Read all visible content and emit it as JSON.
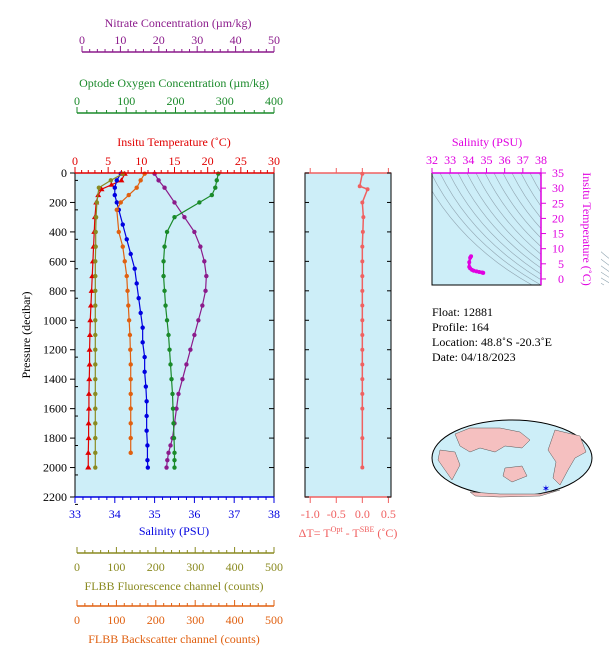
{
  "colors": {
    "nitrate": "#8b1a8b",
    "oxygen": "#1a8a2a",
    "temperature": "#e00000",
    "salinity": "#0000e0",
    "fluorescence": "#8a8a20",
    "backscatter": "#e06010",
    "delta_t": "#f06060",
    "ts_axis": "#e000e0",
    "plot_bg": "#cdeef8"
  },
  "axes": {
    "nitrate": {
      "label": "Nitrate Concentration (µm/kg)",
      "ticks": [
        "0",
        "10",
        "20",
        "30",
        "40",
        "50"
      ]
    },
    "oxygen": {
      "label": "Optode Oxygen Concentration (µm/kg)",
      "ticks": [
        "0",
        "100",
        "200",
        "300",
        "400"
      ]
    },
    "temperature": {
      "label": "Insitu Temperature (˚C)",
      "ticks": [
        "0",
        "5",
        "10",
        "15",
        "20",
        "25",
        "30"
      ]
    },
    "pressure": {
      "label": "Pressure (decibar)",
      "ticks": [
        "0",
        "200",
        "400",
        "600",
        "800",
        "1000",
        "1200",
        "1400",
        "1600",
        "1800",
        "2000",
        "2200"
      ]
    },
    "salinity": {
      "label": "Salinity (PSU)",
      "ticks": [
        "33",
        "34",
        "35",
        "36",
        "37",
        "38"
      ]
    },
    "fluorescence": {
      "label": "FLBB Fluorescence channel (counts)",
      "ticks": [
        "0",
        "100",
        "200",
        "300",
        "400",
        "500"
      ]
    },
    "backscatter": {
      "label": "FLBB Backscatter channel (counts)",
      "ticks": [
        "0",
        "100",
        "200",
        "300",
        "400",
        "500"
      ]
    },
    "delta_t": {
      "label_pre": "ΔT= T",
      "label_sup1": "Opt",
      "label_mid": " - T",
      "label_sup2": "SBE",
      "label_post": " (˚C)",
      "ticks": [
        "-1.0",
        "-0.5",
        "0.0",
        "0.5"
      ]
    },
    "ts_salinity": {
      "label": "Salinity (PSU)",
      "ticks": [
        "32",
        "33",
        "34",
        "35",
        "36",
        "37",
        "38"
      ]
    },
    "ts_temperature": {
      "label": "Insitu Temperature (˚C)",
      "ticks": [
        "0",
        "5",
        "10",
        "15",
        "20",
        "25",
        "30",
        "35"
      ]
    }
  },
  "info": {
    "float": "Float:  12881",
    "profile": "Profile:  164",
    "location": "Location:  48.8˚S  -20.3˚E",
    "date": "Date:  04/18/2023"
  },
  "chart_data": [
    {
      "type": "line",
      "title": "",
      "ylabel": "Pressure (decibar)",
      "ylim": [
        2200,
        0
      ],
      "series": [
        {
          "name": "Insitu Temperature (˚C)",
          "xlim": [
            0,
            30
          ],
          "color": "#e00000",
          "x": [
            7.5,
            7.0,
            5.5,
            4.0,
            3.5,
            3.2,
            3.0,
            2.9,
            2.8,
            2.7,
            2.6,
            2.5,
            2.4,
            2.3,
            2.25,
            2.2,
            2.2,
            2.15,
            2.1,
            2.1,
            2.05,
            2.05,
            2.0,
            2.0,
            2.0
          ],
          "y": [
            5,
            50,
            80,
            110,
            150,
            200,
            300,
            400,
            500,
            600,
            700,
            800,
            900,
            1000,
            1100,
            1200,
            1300,
            1400,
            1500,
            1600,
            1700,
            1800,
            1900,
            2000,
            2000
          ]
        },
        {
          "name": "Salinity (PSU)",
          "xlim": [
            33,
            38
          ],
          "color": "#0000e0",
          "x": [
            34.15,
            34.05,
            34.0,
            34.0,
            34.05,
            34.1,
            34.2,
            34.3,
            34.4,
            34.5,
            34.55,
            34.6,
            34.65,
            34.7,
            34.7,
            34.75,
            34.75,
            34.78,
            34.8,
            34.8,
            34.8,
            34.82,
            34.82,
            34.83
          ],
          "y": [
            5,
            50,
            100,
            150,
            200,
            250,
            350,
            450,
            550,
            650,
            750,
            850,
            950,
            1050,
            1150,
            1250,
            1350,
            1450,
            1550,
            1650,
            1750,
            1850,
            1950,
            2000
          ]
        },
        {
          "name": "Nitrate Concentration (µm/kg)",
          "xlim": [
            0,
            50
          ],
          "color": "#8b1a8b",
          "x": [
            20.0,
            21.0,
            22.5,
            25.0,
            27.5,
            30.0,
            31.5,
            32.5,
            33.0,
            32.8,
            32.0,
            31.0,
            30.0,
            29.0,
            28.0,
            27.0,
            26.0,
            25.5,
            25.0,
            24.5,
            24.0,
            23.5,
            23.2,
            23.0
          ],
          "y": [
            5,
            50,
            100,
            200,
            300,
            400,
            500,
            600,
            700,
            800,
            900,
            1000,
            1100,
            1200,
            1300,
            1400,
            1500,
            1600,
            1700,
            1800,
            1850,
            1900,
            1950,
            2000
          ]
        },
        {
          "name": "Optode Oxygen Concentration (µm/kg)",
          "xlim": [
            0,
            400
          ],
          "color": "#1a8a2a",
          "x": [
            288,
            285,
            282,
            275,
            250,
            200,
            185,
            180,
            178,
            178,
            180,
            182,
            185,
            188,
            190,
            192,
            194,
            196,
            197,
            198,
            199,
            200,
            200,
            200
          ],
          "y": [
            5,
            50,
            100,
            150,
            200,
            300,
            400,
            500,
            600,
            700,
            800,
            900,
            1000,
            1100,
            1200,
            1300,
            1400,
            1500,
            1600,
            1700,
            1800,
            1900,
            1950,
            2000
          ]
        },
        {
          "name": "FLBB Fluorescence channel (counts)",
          "xlim": [
            0,
            500
          ],
          "color": "#8a8a20",
          "x": [
            120,
            90,
            60,
            55,
            53,
            52,
            52,
            51,
            51,
            51,
            51,
            51,
            51,
            51,
            51,
            51,
            51,
            51,
            51,
            51,
            51,
            51
          ],
          "y": [
            5,
            50,
            100,
            200,
            300,
            400,
            500,
            600,
            700,
            800,
            900,
            1000,
            1100,
            1200,
            1300,
            1400,
            1500,
            1600,
            1700,
            1800,
            1900,
            2000
          ]
        },
        {
          "name": "FLBB Backscatter channel (counts)",
          "xlim": [
            0,
            500
          ],
          "color": "#e06010",
          "x": [
            175,
            165,
            155,
            135,
            115,
            105,
            110,
            120,
            125,
            130,
            132,
            134,
            136,
            138,
            139,
            140,
            140,
            140,
            140,
            140,
            140,
            140
          ],
          "y": [
            5,
            50,
            100,
            150,
            200,
            250,
            400,
            500,
            600,
            700,
            800,
            900,
            1000,
            1100,
            1200,
            1300,
            1400,
            1500,
            1600,
            1700,
            1800,
            1900
          ]
        }
      ]
    },
    {
      "type": "line",
      "title": "",
      "xlabel": "ΔT= T^Opt - T^SBE (˚C)",
      "xlim": [
        -1.1,
        0.55
      ],
      "ylim": [
        2200,
        0
      ],
      "series": [
        {
          "name": "",
          "x": [
            0.0,
            -0.05,
            0.1,
            0.0,
            0.02,
            0.01,
            0.0,
            0.0,
            0.0,
            0.0,
            0.0,
            0.0,
            0.0,
            0.0,
            0.0,
            0.0,
            0.0,
            0.0,
            0.0,
            0.0
          ],
          "y": [
            5,
            90,
            110,
            200,
            300,
            400,
            500,
            600,
            700,
            800,
            900,
            1000,
            1100,
            1200,
            1300,
            1400,
            1500,
            1600,
            1800,
            2000
          ]
        }
      ]
    },
    {
      "type": "scatter",
      "title": "",
      "xlabel": "Salinity (PSU)",
      "ylabel": "Insitu Temperature (˚C)",
      "xlim": [
        32,
        38
      ],
      "ylim": [
        -2,
        35
      ],
      "series": [
        {
          "name": "",
          "x": [
            34.15,
            34.1,
            34.05,
            34.05,
            34.1,
            34.2,
            34.3,
            34.45,
            34.6,
            34.75,
            34.8,
            34.82
          ],
          "y": [
            7.5,
            7.0,
            5.5,
            4.0,
            3.5,
            3.0,
            2.7,
            2.5,
            2.3,
            2.15,
            2.05,
            2.0
          ]
        }
      ]
    }
  ]
}
